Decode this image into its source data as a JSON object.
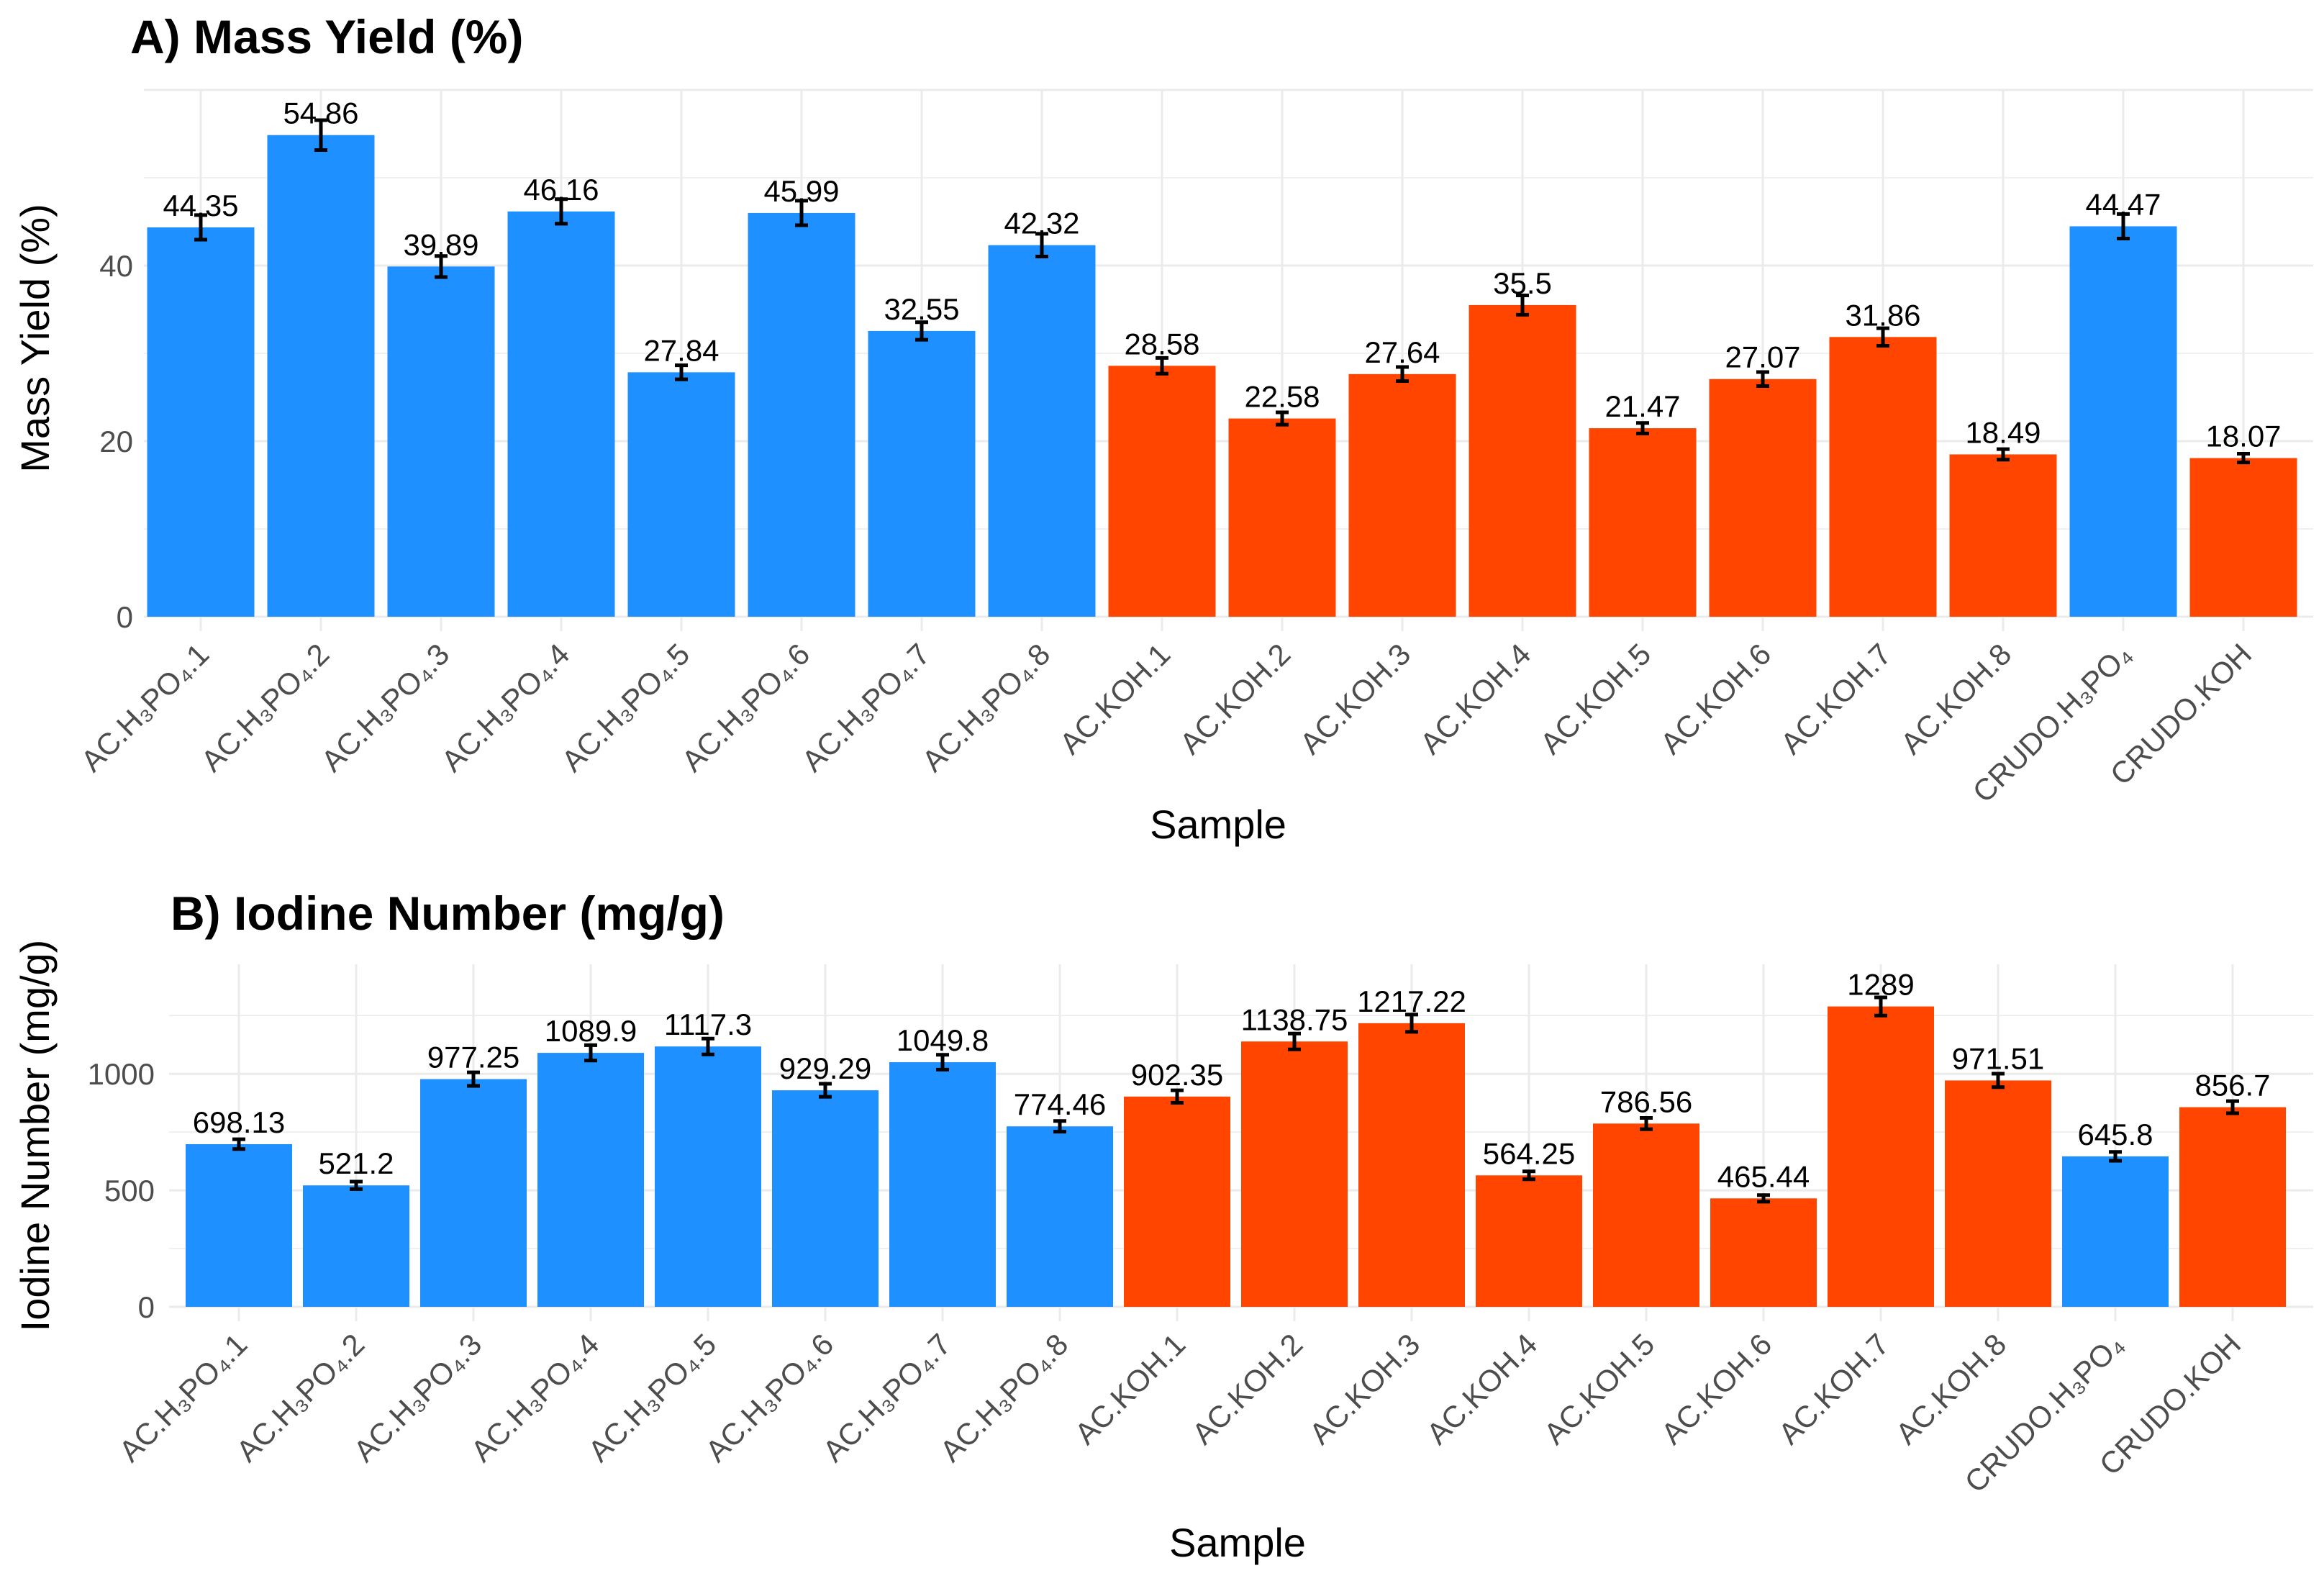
{
  "colors": {
    "H3PO4": "#1E90FF",
    "KOH": "#FF4500"
  },
  "chart_data": [
    {
      "type": "bar",
      "title": "A) Mass Yield (%)",
      "xlabel": "Sample",
      "ylabel": "Mass Yield (%)",
      "ylim": [
        0,
        60
      ],
      "yticks": [
        0,
        20,
        40
      ],
      "grid": true,
      "categories": [
        "AC.H₃PO₄.1",
        "AC.H₃PO₄.2",
        "AC.H₃PO₄.3",
        "AC.H₃PO₄.4",
        "AC.H₃PO₄.5",
        "AC.H₃PO₄.6",
        "AC.H₃PO₄.7",
        "AC.H₃PO₄.8",
        "AC.KOH.1",
        "AC.KOH.2",
        "AC.KOH.3",
        "AC.KOH.4",
        "AC.KOH.5",
        "AC.KOH.6",
        "AC.KOH.7",
        "AC.KOH.8",
        "CRUDO.H₃PO₄",
        "CRUDO.KOH"
      ],
      "groups": [
        "H3PO4",
        "H3PO4",
        "H3PO4",
        "H3PO4",
        "H3PO4",
        "H3PO4",
        "H3PO4",
        "H3PO4",
        "KOH",
        "KOH",
        "KOH",
        "KOH",
        "KOH",
        "KOH",
        "KOH",
        "KOH",
        "H3PO4",
        "KOH"
      ],
      "values": [
        44.35,
        54.86,
        39.89,
        46.16,
        27.84,
        45.99,
        32.55,
        42.32,
        28.58,
        22.58,
        27.64,
        35.5,
        21.47,
        27.07,
        31.86,
        18.49,
        44.47,
        18.07
      ],
      "labels": [
        "44.35",
        "54.86",
        "39.89",
        "46.16",
        "27.84",
        "45.99",
        "32.55",
        "42.32",
        "28.58",
        "22.58",
        "27.64",
        "35.5",
        "21.47",
        "27.07",
        "31.86",
        "18.49",
        "44.47",
        "18.07"
      ],
      "errors": [
        1.4,
        1.7,
        1.2,
        1.4,
        0.8,
        1.4,
        1.0,
        1.3,
        0.9,
        0.7,
        0.8,
        1.1,
        0.6,
        0.8,
        1.0,
        0.6,
        1.4,
        0.5
      ]
    },
    {
      "type": "bar",
      "title": "B) Iodine Number (mg/g)",
      "xlabel": "Sample",
      "ylabel": "Iodine Number (mg/g)",
      "ylim": [
        0,
        1470
      ],
      "yticks": [
        0,
        500,
        1000
      ],
      "grid": true,
      "categories": [
        "AC.H₃PO₄.1",
        "AC.H₃PO₄.2",
        "AC.H₃PO₄.3",
        "AC.H₃PO₄.4",
        "AC.H₃PO₄.5",
        "AC.H₃PO₄.6",
        "AC.H₃PO₄.7",
        "AC.H₃PO₄.8",
        "AC.KOH.1",
        "AC.KOH.2",
        "AC.KOH.3",
        "AC.KOH.4",
        "AC.KOH.5",
        "AC.KOH.6",
        "AC.KOH.7",
        "AC.KOH.8",
        "CRUDO.H₃PO₄",
        "CRUDO.KOH"
      ],
      "groups": [
        "H3PO4",
        "H3PO4",
        "H3PO4",
        "H3PO4",
        "H3PO4",
        "H3PO4",
        "H3PO4",
        "H3PO4",
        "KOH",
        "KOH",
        "KOH",
        "KOH",
        "KOH",
        "KOH",
        "KOH",
        "KOH",
        "H3PO4",
        "KOH"
      ],
      "values": [
        698.13,
        521.2,
        977.25,
        1089.9,
        1117.3,
        929.29,
        1049.8,
        774.46,
        902.35,
        1138.75,
        1217.22,
        564.25,
        786.56,
        465.44,
        1289,
        971.51,
        645.8,
        856.7
      ],
      "labels": [
        "698.13",
        "521.2",
        "977.25",
        "1089.9",
        "1117.3",
        "929.29",
        "1049.8",
        "774.46",
        "902.35",
        "1138.75",
        "1217.22",
        "564.25",
        "786.56",
        "465.44",
        "1289",
        "971.51",
        "645.8",
        "856.7"
      ],
      "errors": [
        21,
        16,
        29,
        33,
        34,
        28,
        32,
        23,
        27,
        34,
        37,
        17,
        24,
        14,
        39,
        29,
        19,
        26
      ]
    }
  ]
}
